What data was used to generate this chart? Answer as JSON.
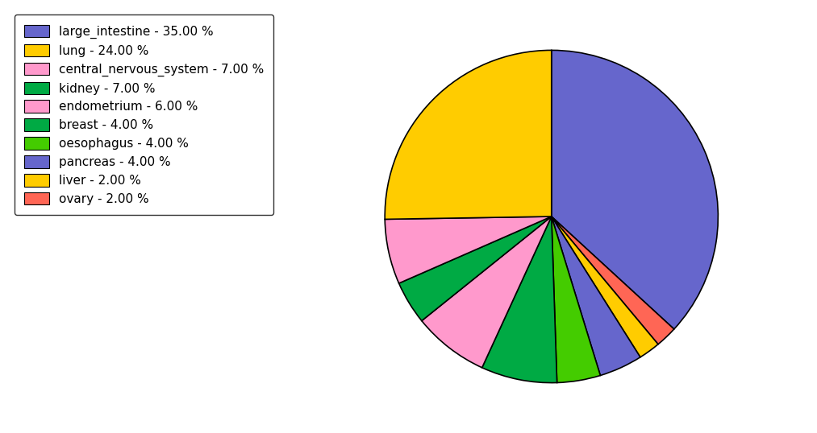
{
  "labels": [
    "large_intestine - 35.00 %",
    "lung - 24.00 %",
    "central_nervous_system - 7.00 %",
    "kidney - 7.00 %",
    "endometrium - 6.00 %",
    "breast - 4.00 %",
    "oesophagus - 4.00 %",
    "pancreas - 4.00 %",
    "liver - 2.00 %",
    "ovary - 2.00 %"
  ],
  "sizes": [
    35,
    24,
    7,
    7,
    6,
    4,
    4,
    4,
    2,
    2
  ],
  "pie_order_labels": [
    "large_intestine",
    "ovary",
    "liver",
    "pancreas",
    "oesophagus",
    "kidney",
    "central_nervous_system",
    "breast",
    "endometrium",
    "lung"
  ],
  "pie_order_sizes": [
    35,
    2,
    2,
    4,
    4,
    7,
    7,
    4,
    6,
    24
  ],
  "pie_order_colors": [
    "#6666cc",
    "#ff6655",
    "#ffcc00",
    "#6666cc",
    "#44cc00",
    "#00aa44",
    "#ff99cc",
    "#00aa44",
    "#ff99cc",
    "#ffcc00"
  ],
  "legend_colors": [
    "#6666cc",
    "#ffcc00",
    "#ff99cc",
    "#00aa44",
    "#ff99cc",
    "#00aa44",
    "#44cc00",
    "#6666cc",
    "#ffcc00",
    "#ff6655"
  ],
  "start_angle": 90,
  "figsize": [
    10.13,
    5.38
  ],
  "dpi": 100
}
